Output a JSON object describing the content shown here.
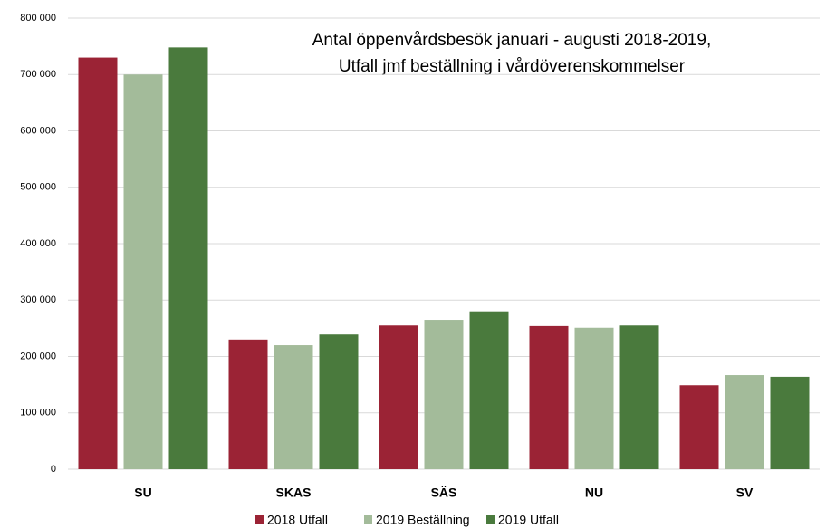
{
  "chart_data": {
    "type": "bar",
    "title": [
      "Antal öppenvårdsbesök januari - augusti 2018-2019,",
      "Utfall jmf beställning i vårdöverenskommelser"
    ],
    "categories": [
      "SU",
      "SKAS",
      "SÄS",
      "NU",
      "SV"
    ],
    "series": [
      {
        "name": "2018 Utfall",
        "color": "#9b2335",
        "values": [
          730000,
          230000,
          255000,
          254000,
          149000
        ]
      },
      {
        "name": "2019 Beställning",
        "color": "#a3bb9a",
        "values": [
          700000,
          220000,
          265000,
          251000,
          167000
        ]
      },
      {
        "name": "2019 Utfall",
        "color": "#4a7a3d",
        "values": [
          748000,
          239000,
          280000,
          255000,
          164000
        ]
      }
    ],
    "ylim": [
      0,
      800000
    ],
    "yticks": [
      0,
      {
        "value": 100000,
        "label": "100 000"
      },
      {
        "value": 200000,
        "label": "200 000"
      },
      {
        "value": 300000,
        "label": "300 000"
      },
      {
        "value": 400000,
        "label": "400 000"
      },
      {
        "value": 500000,
        "label": "500 000"
      },
      {
        "value": 600000,
        "label": "600 000"
      },
      {
        "value": 700000,
        "label": "700 000"
      },
      {
        "value": 800000,
        "label": "800 000"
      }
    ],
    "grid": true,
    "legend": "bottom"
  }
}
